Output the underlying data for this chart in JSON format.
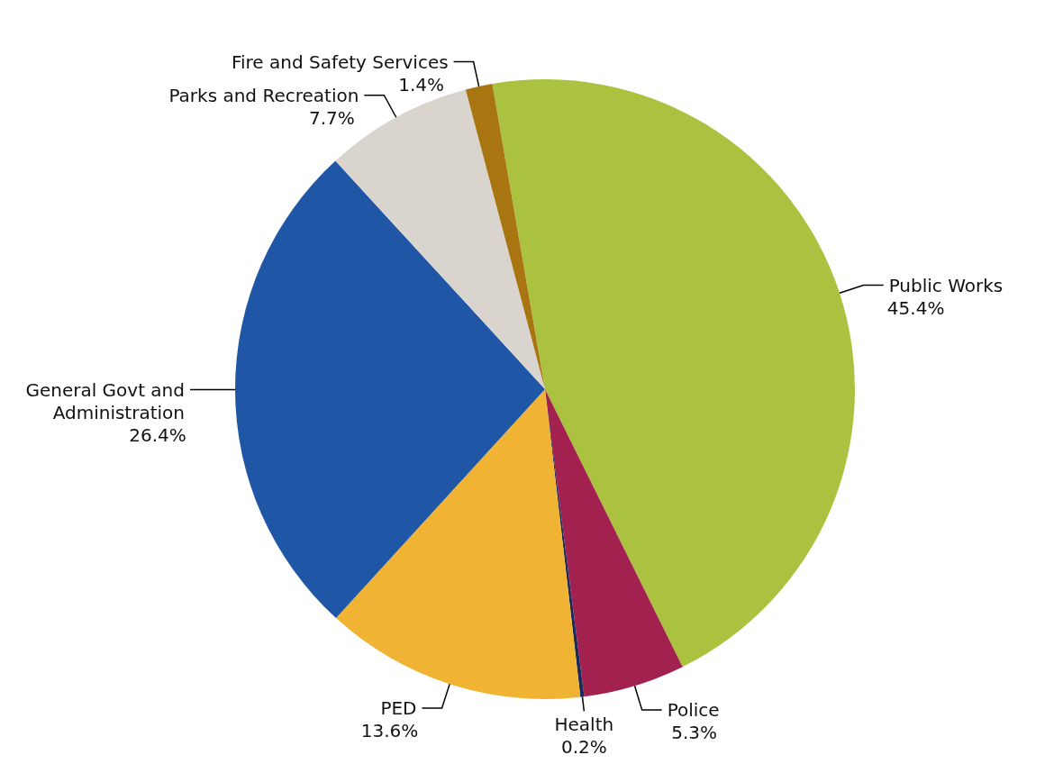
{
  "chart_data": {
    "type": "pie",
    "categories": [
      "Public Works",
      "Police",
      "Health",
      "PED",
      "General Govt and Administration",
      "Parks and Recreation",
      "Fire and Safety Services"
    ],
    "values": [
      45.4,
      5.3,
      0.2,
      13.6,
      26.4,
      7.7,
      1.4
    ],
    "value_labels": [
      "45.4%",
      "5.3%",
      "0.2%",
      "13.6%",
      "26.4%",
      "7.7%",
      "1.4%"
    ],
    "colors": [
      "#abc241",
      "#a2214f",
      "#1a2a5a",
      "#f1b333",
      "#1f57a6",
      "#d9d4ce",
      "#a87510"
    ]
  }
}
